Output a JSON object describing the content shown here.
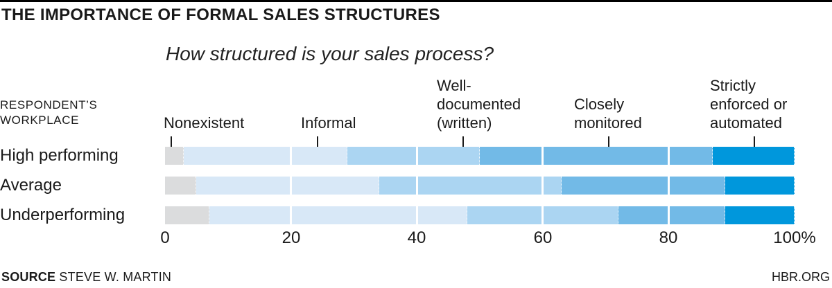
{
  "header": {
    "title": "THE IMPORTANCE OF FORMAL SALES STRUCTURES",
    "question": "How structured is your sales process?"
  },
  "row_axis": {
    "line1": "RESPONDENT’S",
    "line2": "WORKPLACE"
  },
  "chart_data": {
    "type": "bar",
    "orientation": "horizontal",
    "stacked": true,
    "unit": "percent",
    "title": "THE IMPORTANCE OF FORMAL SALES STRUCTURES",
    "subtitle": "How structured is your sales process?",
    "row_group_label": "RESPONDENT’S WORKPLACE",
    "categories": [
      "Nonexistent",
      "Informal",
      "Well-documented (written)",
      "Closely monitored",
      "Strictly enforced or automated"
    ],
    "category_colors": [
      "#dbdcdd",
      "#d8e8f7",
      "#abd5f2",
      "#72bae7",
      "#0097dc"
    ],
    "series": [
      {
        "name": "High performing",
        "values": [
          3,
          26,
          21,
          37,
          13
        ]
      },
      {
        "name": "Average",
        "values": [
          5,
          29,
          29,
          26,
          11
        ]
      },
      {
        "name": "Underperforming",
        "values": [
          7,
          41,
          24,
          17,
          11
        ]
      }
    ],
    "x_ticks": [
      "0",
      "20",
      "40",
      "60",
      "80",
      "100%"
    ],
    "xlim": [
      0,
      100
    ],
    "gridlines": [
      20,
      40,
      60,
      80
    ],
    "legend_position": "labels-above-bars-with-pointers"
  },
  "annotations": {
    "labels": [
      {
        "lines": [
          "Nonexistent"
        ]
      },
      {
        "lines": [
          "Informal"
        ]
      },
      {
        "lines": [
          "Well-",
          "documented",
          "(written)"
        ]
      },
      {
        "lines": [
          "Closely",
          "monitored"
        ]
      },
      {
        "lines": [
          "Strictly",
          "enforced or",
          "automated"
        ]
      }
    ]
  },
  "footer": {
    "source_label": "SOURCE",
    "source_value": "STEVE W. MARTIN",
    "brand": "HBR.ORG"
  }
}
